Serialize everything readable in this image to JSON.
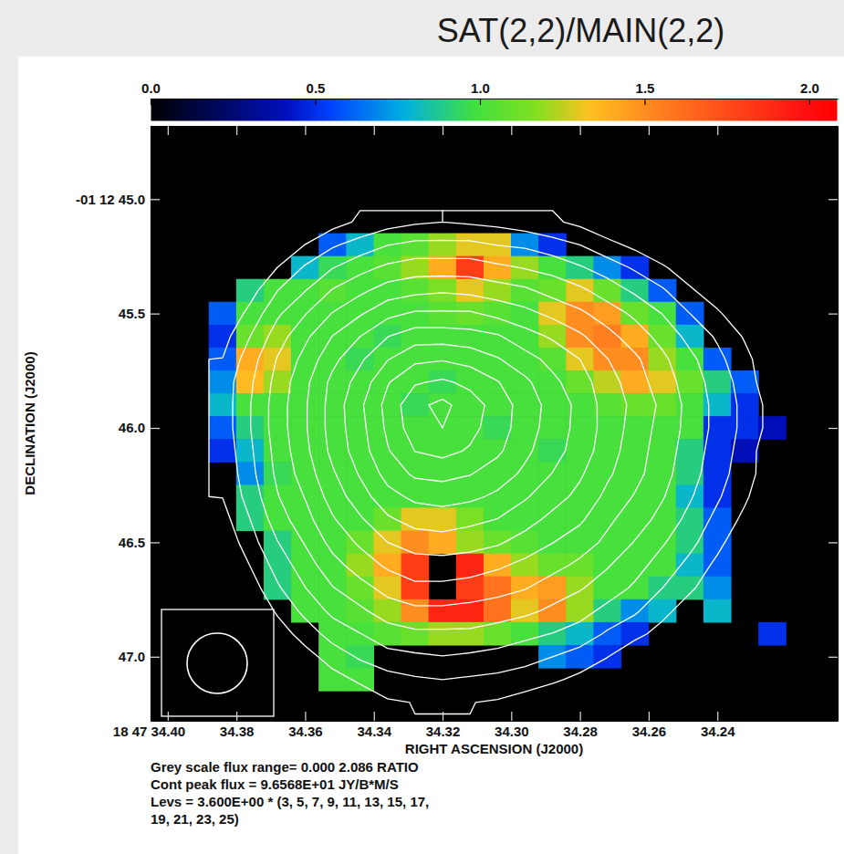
{
  "chart_data": {
    "type": "heatmap",
    "title": "SAT(2,2)/MAIN(2,2)",
    "x_label": "RIGHT ASCENSION (J2000)",
    "y_label": "DECLINATION (J2000)",
    "xlim": [
      34.405,
      34.205
    ],
    "ylim": [
      44.68,
      47.28
    ],
    "xticks": [
      {
        "value": 34.4,
        "label": "18 47 34.40"
      },
      34.38,
      34.36,
      34.34,
      34.32,
      {
        "value": 34.3,
        "label": "34.30"
      },
      34.28,
      34.26,
      34.24
    ],
    "yticks": [
      {
        "value": 45,
        "label": "-01 12 45.0"
      },
      45.5,
      {
        "value": 46,
        "label": "46.0"
      },
      46.5,
      {
        "value": 47,
        "label": "47.0"
      }
    ],
    "x": [
      34.384,
      34.376,
      34.368,
      34.36,
      34.352,
      34.344,
      34.336,
      34.328,
      34.32,
      34.312,
      34.304,
      34.296,
      34.288,
      34.28,
      34.272,
      34.264,
      34.256,
      34.248,
      34.24,
      34.232,
      34.224
    ],
    "y": [
      45.1,
      45.2,
      45.3,
      45.4,
      45.5,
      45.6,
      45.7,
      45.8,
      45.9,
      46.0,
      46.1,
      46.2,
      46.3,
      46.4,
      46.5,
      46.6,
      46.7,
      46.8,
      46.9,
      47.0,
      47.1,
      47.2
    ],
    "values": [
      [
        null,
        null,
        null,
        null,
        null,
        null,
        null,
        null,
        null,
        null,
        null,
        null,
        null,
        null,
        null,
        null,
        null,
        null,
        null,
        null,
        null
      ],
      [
        null,
        null,
        null,
        null,
        0.6,
        0.8,
        1.0,
        1.05,
        1.2,
        1.3,
        1.3,
        0.7,
        0.5,
        null,
        null,
        null,
        null,
        null,
        null,
        null,
        null
      ],
      [
        null,
        null,
        null,
        0.8,
        0.95,
        1.0,
        1.05,
        1.2,
        1.4,
        1.8,
        1.4,
        1.2,
        1.0,
        0.9,
        0.7,
        0.5,
        null,
        null,
        null,
        null,
        null
      ],
      [
        null,
        0.9,
        1.0,
        1.0,
        1.05,
        1.0,
        1.0,
        1.05,
        1.15,
        1.3,
        1.2,
        1.05,
        1.1,
        1.3,
        1.1,
        0.9,
        0.6,
        null,
        null,
        null,
        null
      ],
      [
        0.6,
        1.0,
        1.0,
        1.0,
        1.0,
        1.0,
        1.0,
        1.0,
        1.05,
        1.1,
        1.05,
        1.0,
        1.3,
        1.5,
        1.45,
        1.1,
        1.0,
        0.6,
        null,
        null,
        null
      ],
      [
        0.5,
        1.1,
        1.2,
        1.0,
        1.0,
        1.0,
        0.95,
        1.0,
        1.0,
        1.0,
        1.0,
        1.0,
        1.2,
        1.5,
        1.55,
        1.4,
        1.1,
        0.8,
        null,
        null,
        null
      ],
      [
        0.6,
        1.4,
        1.3,
        1.0,
        1.0,
        0.95,
        1.0,
        1.0,
        1.0,
        1.0,
        1.0,
        1.0,
        1.05,
        1.3,
        1.5,
        1.5,
        1.2,
        1.0,
        0.6,
        null,
        null
      ],
      [
        0.7,
        1.35,
        1.2,
        1.0,
        1.0,
        1.0,
        1.0,
        1.0,
        0.95,
        1.0,
        1.0,
        1.0,
        1.0,
        1.1,
        1.25,
        1.4,
        1.3,
        1.1,
        0.9,
        0.6,
        null
      ],
      [
        0.8,
        1.0,
        1.0,
        1.0,
        1.0,
        1.0,
        1.0,
        0.95,
        1.0,
        1.0,
        1.0,
        1.0,
        1.0,
        1.0,
        1.05,
        1.1,
        1.1,
        1.0,
        0.8,
        0.5,
        null
      ],
      [
        0.6,
        0.9,
        1.0,
        1.0,
        1.0,
        1.0,
        1.0,
        1.0,
        1.0,
        1.0,
        0.95,
        1.0,
        1.0,
        1.0,
        1.0,
        1.0,
        1.0,
        1.0,
        0.5,
        0.5,
        0.4
      ],
      [
        0.5,
        0.8,
        1.0,
        1.0,
        1.0,
        1.0,
        1.0,
        1.0,
        1.0,
        1.0,
        1.0,
        1.0,
        0.95,
        1.0,
        1.0,
        1.0,
        1.0,
        0.9,
        0.5,
        0.4,
        null
      ],
      [
        null,
        0.7,
        0.95,
        1.0,
        1.0,
        1.0,
        1.0,
        1.0,
        1.0,
        1.0,
        1.0,
        1.0,
        1.0,
        1.0,
        1.0,
        1.0,
        1.0,
        0.9,
        0.5,
        null,
        null
      ],
      [
        null,
        0.9,
        1.0,
        1.0,
        1.0,
        1.0,
        1.0,
        1.0,
        1.0,
        1.0,
        1.0,
        1.0,
        1.0,
        1.0,
        1.0,
        1.0,
        1.0,
        0.8,
        0.5,
        null,
        null
      ],
      [
        null,
        0.9,
        1.0,
        1.0,
        1.0,
        1.0,
        1.1,
        1.3,
        1.3,
        1.15,
        1.0,
        1.0,
        1.0,
        1.0,
        1.0,
        1.0,
        1.0,
        0.9,
        0.6,
        null,
        null
      ],
      [
        null,
        null,
        0.9,
        1.0,
        1.0,
        1.1,
        1.3,
        1.5,
        1.4,
        1.2,
        1.1,
        1.05,
        1.0,
        1.0,
        1.0,
        1.0,
        1.0,
        0.9,
        0.6,
        null,
        null
      ],
      [
        null,
        null,
        0.9,
        1.0,
        1.0,
        1.2,
        1.4,
        1.8,
        null,
        1.9,
        1.4,
        1.2,
        1.1,
        1.1,
        1.0,
        1.0,
        1.0,
        0.8,
        0.6,
        null,
        null
      ],
      [
        null,
        null,
        0.9,
        1.0,
        1.0,
        1.1,
        1.3,
        1.8,
        null,
        1.8,
        1.6,
        1.4,
        1.45,
        1.2,
        1.0,
        1.0,
        0.9,
        0.9,
        0.7,
        null,
        null
      ],
      [
        null,
        null,
        null,
        1.0,
        1.0,
        1.05,
        1.2,
        1.5,
        1.9,
        1.9,
        1.6,
        1.3,
        1.5,
        1.2,
        0.9,
        0.7,
        0.8,
        null,
        0.8,
        null,
        null
      ],
      [
        null,
        null,
        null,
        null,
        1.0,
        1.0,
        1.05,
        1.1,
        1.2,
        1.2,
        1.1,
        1.0,
        0.9,
        0.8,
        0.6,
        0.5,
        null,
        null,
        null,
        null,
        0.5
      ],
      [
        null,
        null,
        null,
        null,
        1.0,
        0.95,
        null,
        null,
        null,
        null,
        null,
        null,
        0.7,
        0.6,
        0.5,
        null,
        null,
        null,
        null,
        null,
        null
      ],
      [
        null,
        null,
        null,
        null,
        1.0,
        1.0,
        null,
        null,
        null,
        null,
        null,
        null,
        null,
        null,
        null,
        null,
        null,
        null,
        null,
        null,
        null
      ],
      [
        null,
        null,
        null,
        null,
        null,
        null,
        null,
        null,
        null,
        null,
        null,
        null,
        null,
        null,
        null,
        null,
        null,
        null,
        null,
        null,
        null
      ]
    ],
    "contour_values": [
      [
        0,
        0,
        0,
        2,
        8,
        12,
        15,
        17,
        18,
        17,
        16,
        14,
        12,
        9,
        5,
        1,
        0,
        0,
        0,
        0,
        0
      ],
      [
        0,
        0,
        4,
        11,
        17,
        21,
        25,
        27,
        27,
        27,
        25,
        24,
        21,
        18,
        13,
        9,
        4,
        0,
        0,
        0,
        0
      ],
      [
        0,
        2,
        11,
        19,
        25,
        30,
        34,
        36,
        36,
        36,
        34,
        32,
        30,
        26,
        22,
        17,
        12,
        6,
        1,
        0,
        0
      ],
      [
        0,
        8,
        18,
        25,
        33,
        38,
        43,
        45,
        46,
        45,
        43,
        41,
        37,
        34,
        29,
        24,
        19,
        12,
        6,
        1,
        0
      ],
      [
        4,
        13,
        24,
        32,
        40,
        46,
        52,
        55,
        55,
        55,
        52,
        49,
        45,
        41,
        36,
        31,
        25,
        18,
        12,
        5,
        0
      ],
      [
        8,
        18,
        29,
        38,
        47,
        54,
        61,
        65,
        65,
        64,
        62,
        57,
        53,
        48,
        42,
        36,
        30,
        23,
        17,
        10,
        2
      ],
      [
        11,
        22,
        33,
        42,
        52,
        60,
        68,
        74,
        75,
        73,
        69,
        64,
        59,
        54,
        47,
        41,
        34,
        27,
        20,
        13,
        5
      ],
      [
        14,
        24,
        35,
        45,
        56,
        64,
        75,
        82,
        84,
        81,
        76,
        70,
        63,
        57,
        50,
        43,
        36,
        29,
        22,
        15,
        5
      ],
      [
        14,
        25,
        36,
        46,
        57,
        67,
        78,
        88,
        92,
        86,
        80,
        72,
        66,
        59,
        51,
        45,
        38,
        30,
        23,
        16,
        8
      ],
      [
        14,
        25,
        36,
        46,
        57,
        66,
        77,
        87,
        90,
        85,
        79,
        72,
        65,
        59,
        51,
        44,
        37,
        30,
        23,
        16,
        8
      ],
      [
        13,
        24,
        35,
        45,
        56,
        65,
        75,
        83,
        85,
        82,
        77,
        70,
        64,
        58,
        50,
        43,
        36,
        29,
        22,
        15,
        5
      ],
      [
        12,
        23,
        34,
        43,
        53,
        62,
        71,
        77,
        78,
        76,
        72,
        67,
        61,
        55,
        48,
        42,
        35,
        28,
        21,
        14,
        6
      ],
      [
        11,
        21,
        32,
        40,
        50,
        58,
        66,
        70,
        71,
        70,
        67,
        62,
        57,
        52,
        45,
        39,
        33,
        26,
        19,
        12,
        4
      ],
      [
        8,
        18,
        29,
        37,
        46,
        53,
        60,
        64,
        65,
        63,
        61,
        57,
        52,
        48,
        41,
        36,
        30,
        23,
        16,
        9,
        2
      ],
      [
        5,
        15,
        25,
        33,
        42,
        48,
        54,
        57,
        58,
        57,
        55,
        51,
        47,
        43,
        38,
        32,
        26,
        20,
        13,
        5,
        0
      ],
      [
        2,
        11,
        21,
        29,
        37,
        43,
        48,
        51,
        51,
        50,
        48,
        45,
        42,
        38,
        33,
        28,
        22,
        16,
        9,
        3,
        0
      ],
      [
        0,
        7,
        17,
        25,
        32,
        37,
        42,
        45,
        45,
        44,
        42,
        40,
        36,
        33,
        29,
        24,
        18,
        12,
        6,
        0,
        0
      ],
      [
        0,
        3,
        12,
        20,
        27,
        31,
        36,
        38,
        38,
        37,
        36,
        34,
        31,
        28,
        23,
        19,
        13,
        7,
        2,
        0,
        0
      ],
      [
        0,
        0,
        7,
        14,
        21,
        25,
        29,
        31,
        31,
        31,
        29,
        27,
        25,
        22,
        17,
        13,
        8,
        2,
        0,
        0,
        0
      ],
      [
        0,
        0,
        1,
        8,
        14,
        19,
        23,
        24,
        25,
        24,
        23,
        21,
        18,
        15,
        11,
        5,
        2,
        0,
        0,
        0,
        0
      ],
      [
        0,
        0,
        0,
        2,
        8,
        12,
        15,
        17,
        18,
        17,
        16,
        14,
        12,
        9,
        5,
        1,
        0,
        0,
        0,
        0,
        0
      ],
      [
        0,
        0,
        0,
        0,
        2,
        6,
        10,
        11,
        11,
        11,
        10,
        8,
        5,
        3,
        0,
        0,
        0,
        0,
        0,
        0,
        0
      ]
    ],
    "contour_levels": [
      10.8,
      18,
      25.2,
      32.4,
      39.6,
      46.8,
      54,
      61.2,
      68.4,
      75.6,
      82.8,
      90
    ],
    "colorbar_range": [
      0,
      2.086
    ],
    "colorbar_ticks": [
      {
        "value": 0,
        "label": "0.0"
      },
      0.5,
      {
        "value": 1,
        "label": "1.0"
      },
      1.5,
      {
        "value": 2,
        "label": "2.0"
      }
    ],
    "annotations": [
      "Grey scale flux range= 0.000 2.086 RATIO",
      "Cont peak flux = 9.6568E+01 JY/B*M/S",
      "Levs = 3.600E+00 * (3, 5, 7, 9, 11, 13, 15, 17,",
      "19, 21, 23, 25)"
    ]
  }
}
